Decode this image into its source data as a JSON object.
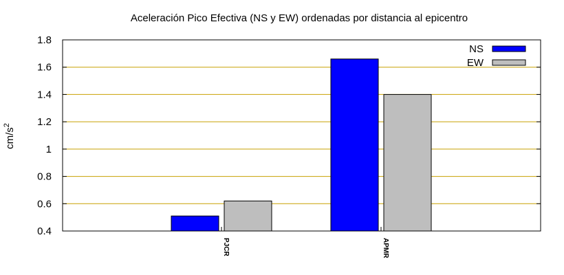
{
  "chart_data": {
    "type": "bar",
    "title": "Aceleración Pico Efectiva (NS y EW) ordenadas por distancia al epicentro",
    "xlabel": "",
    "ylabel": "cm/s",
    "ylabel_superscript": "2",
    "categories": [
      "PJCR",
      "APMR"
    ],
    "series": [
      {
        "name": "NS",
        "color": "#0000ff",
        "values": [
          0.51,
          1.66
        ]
      },
      {
        "name": "EW",
        "color": "#bebebe",
        "values": [
          0.62,
          1.4
        ]
      }
    ],
    "ylim": [
      0.4,
      1.8
    ],
    "yticks": [
      "0.4",
      "0.6",
      "0.8",
      "1",
      "1.2",
      "1.4",
      "1.6",
      "1.8"
    ],
    "ytick_values": [
      0.4,
      0.6,
      0.8,
      1.0,
      1.2,
      1.4,
      1.6,
      1.8
    ],
    "grid": true,
    "grid_color": "#c8a000",
    "legend_position": "top-right"
  }
}
